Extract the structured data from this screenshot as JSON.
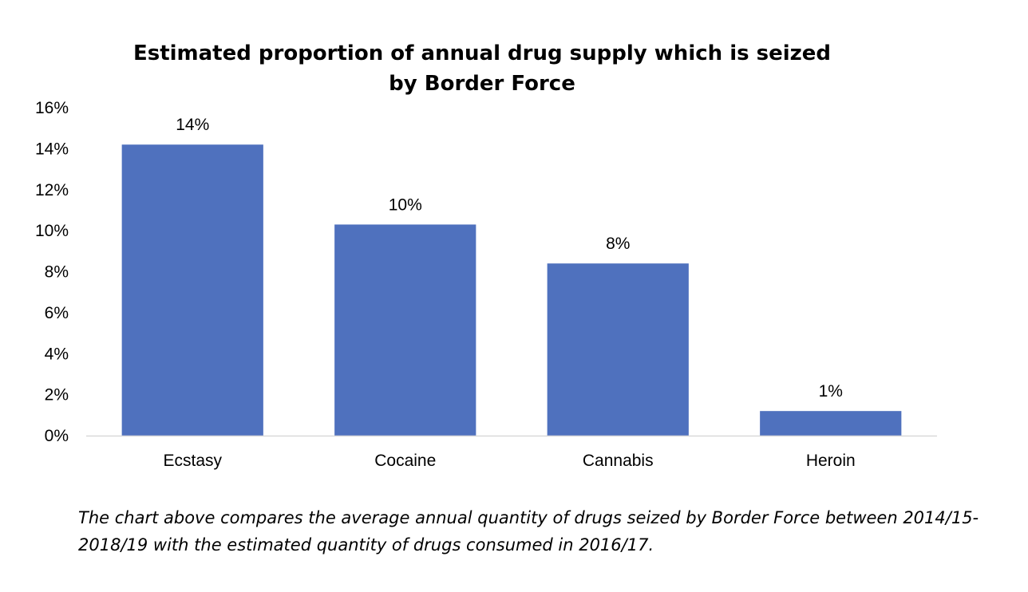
{
  "chart_data": {
    "type": "bar",
    "title": "Estimated proportion of annual drug supply which is seized by Border Force",
    "categories": [
      "Ecstasy",
      "Cocaine",
      "Cannabis",
      "Heroin"
    ],
    "values": [
      0.142,
      0.103,
      0.084,
      0.012
    ],
    "data_labels": [
      "14%",
      "10%",
      "8%",
      "1%"
    ],
    "ylim": [
      0,
      0.16
    ],
    "yticks": [
      0,
      0.02,
      0.04,
      0.06,
      0.08,
      0.1,
      0.12,
      0.14,
      0.16
    ],
    "ytick_labels": [
      "0%",
      "2%",
      "4%",
      "6%",
      "8%",
      "10%",
      "12%",
      "14%",
      "16%"
    ],
    "grid": false,
    "legend": "none",
    "bar_color": "#4f71be",
    "axis_color": "#d9d9d9"
  },
  "caption": "The chart above compares the average annual quantity of drugs seized by Border Force between 2014/15-2018/19 with the estimated quantity of drugs consumed in 2016/17."
}
